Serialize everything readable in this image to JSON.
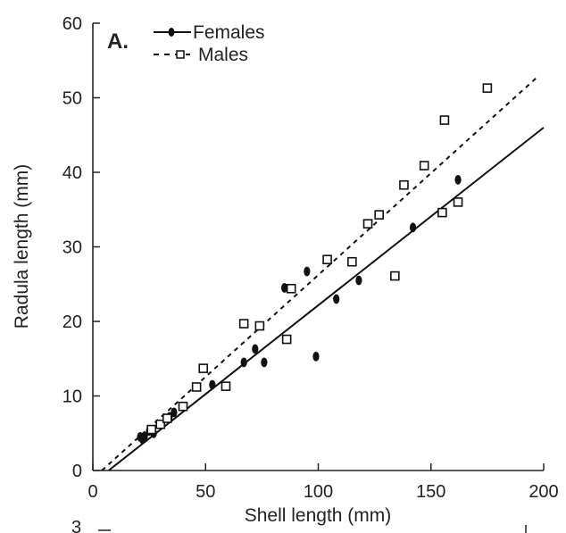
{
  "chart_data": {
    "type": "scatter",
    "panel_label": "A.",
    "xlabel": "Shell length (mm)",
    "ylabel": "Radula length (mm)",
    "xlim": [
      0,
      200
    ],
    "ylim": [
      0,
      60
    ],
    "xticks": [
      0,
      50,
      100,
      150,
      200
    ],
    "yticks": [
      0,
      10,
      20,
      30,
      40,
      50,
      60
    ],
    "grid": false,
    "legend_position": "top-left",
    "footer_text": "3",
    "series": [
      {
        "name": "Females",
        "marker": "filled-ellipse",
        "line_style": "solid",
        "color": "#111111",
        "points": [
          [
            21,
            4.5
          ],
          [
            22,
            4.2
          ],
          [
            23,
            4.6
          ],
          [
            25,
            5.3
          ],
          [
            27,
            5.0
          ],
          [
            34,
            7.2
          ],
          [
            36,
            7.8
          ],
          [
            53,
            11.5
          ],
          [
            67,
            14.5
          ],
          [
            72,
            16.3
          ],
          [
            76,
            14.5
          ],
          [
            85,
            24.5
          ],
          [
            95,
            26.7
          ],
          [
            99,
            15.3
          ],
          [
            108,
            23.0
          ],
          [
            118,
            25.5
          ],
          [
            142,
            32.6
          ],
          [
            162,
            39.0
          ]
        ],
        "fit_line": [
          [
            7,
            0
          ],
          [
            200,
            46
          ]
        ]
      },
      {
        "name": "Males",
        "marker": "open-square",
        "line_style": "dashed",
        "color": "#111111",
        "points": [
          [
            26,
            5.5
          ],
          [
            30,
            6.2
          ],
          [
            33,
            7.0
          ],
          [
            40,
            8.6
          ],
          [
            46,
            11.2
          ],
          [
            49,
            13.7
          ],
          [
            59,
            11.3
          ],
          [
            67,
            19.7
          ],
          [
            74,
            19.4
          ],
          [
            86,
            17.6
          ],
          [
            88,
            24.4
          ],
          [
            104,
            28.3
          ],
          [
            115,
            28.0
          ],
          [
            122,
            33.1
          ],
          [
            127,
            34.3
          ],
          [
            134,
            26.1
          ],
          [
            138,
            38.3
          ],
          [
            147,
            40.9
          ],
          [
            155,
            34.6
          ],
          [
            156,
            47.0
          ],
          [
            162,
            36.0
          ],
          [
            175,
            51.3
          ]
        ],
        "fit_line": [
          [
            4,
            0
          ],
          [
            198,
            53
          ]
        ]
      }
    ]
  }
}
